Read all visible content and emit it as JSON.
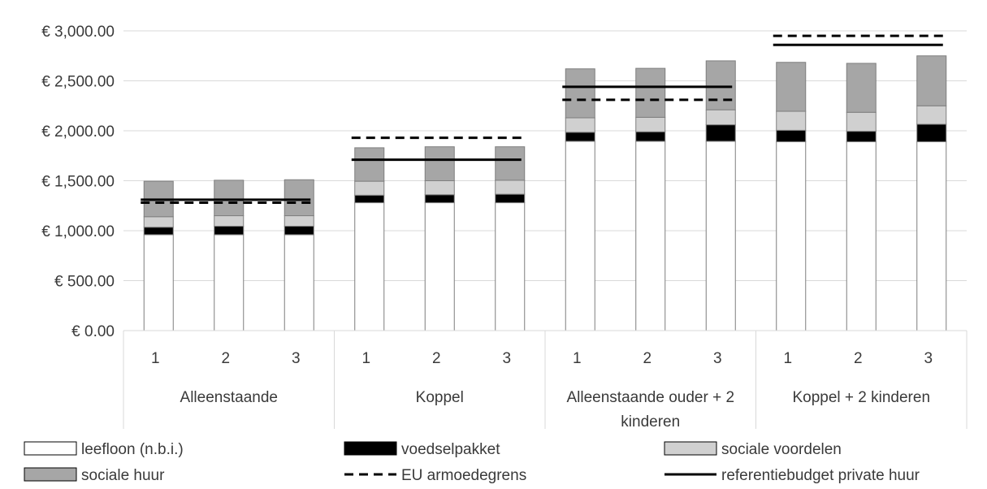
{
  "chart_data": {
    "type": "bar",
    "stacked": true,
    "ylim": [
      0,
      3000
    ],
    "yticks": [
      0,
      500,
      1000,
      1500,
      2000,
      2500,
      3000
    ],
    "ytick_labels": [
      "€ 0.00",
      "€ 500.00",
      "€ 1,000.00",
      "€ 1,500.00",
      "€ 2,000.00",
      "€ 2,500.00",
      "€ 3,000.00"
    ],
    "grid": true,
    "legend_position": "bottom",
    "groups": [
      {
        "label": "Alleenstaande",
        "categories": [
          "1",
          "2",
          "3"
        ]
      },
      {
        "label": "Koppel",
        "categories": [
          "1",
          "2",
          "3"
        ]
      },
      {
        "label": "Alleenstaande ouder + 2 kinderen",
        "categories": [
          "1",
          "2",
          "3"
        ]
      },
      {
        "label": "Koppel + 2 kinderen",
        "categories": [
          "1",
          "2",
          "3"
        ]
      }
    ],
    "series": [
      {
        "name": "leefloon (n.b.i.)",
        "color": "#ffffff",
        "values": [
          960,
          960,
          960,
          1280,
          1280,
          1280,
          1895,
          1895,
          1895,
          1890,
          1890,
          1890
        ]
      },
      {
        "name": "voedselpakket",
        "color": "#000000",
        "values": [
          75,
          85,
          85,
          75,
          80,
          85,
          90,
          95,
          165,
          115,
          105,
          175
        ]
      },
      {
        "name": "sociale voordelen",
        "color": "#d0d0d0",
        "values": [
          105,
          105,
          105,
          140,
          140,
          140,
          145,
          145,
          150,
          190,
          190,
          185
        ]
      },
      {
        "name": "sociale huur",
        "color": "#a6a6a6",
        "values": [
          355,
          355,
          360,
          335,
          340,
          335,
          490,
          490,
          490,
          490,
          490,
          500
        ]
      }
    ],
    "lines": [
      {
        "name": "EU armoedegrens",
        "style": "dashed",
        "values": [
          1280,
          1930,
          2310,
          2950
        ]
      },
      {
        "name": "referentiebudget private huur",
        "style": "solid",
        "values": [
          1310,
          1710,
          2440,
          2860
        ]
      }
    ]
  }
}
